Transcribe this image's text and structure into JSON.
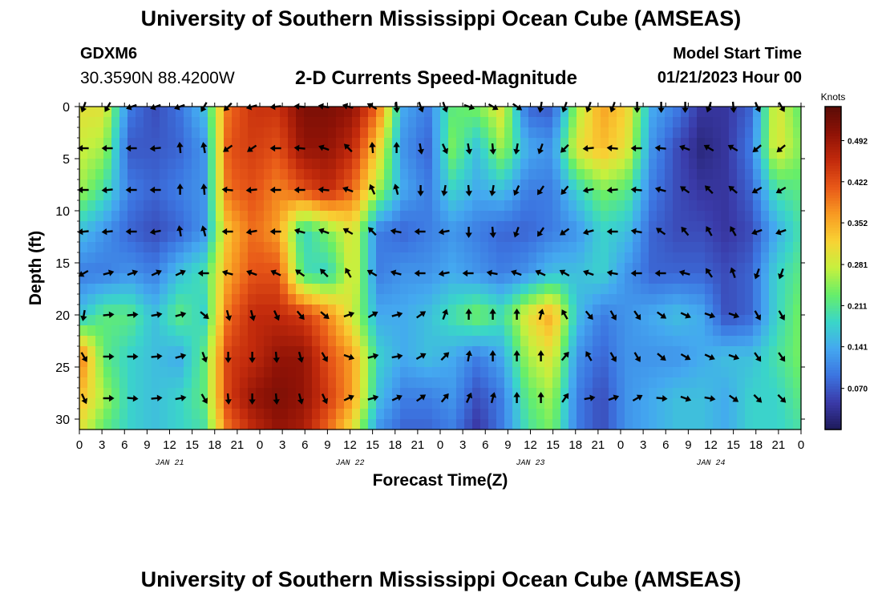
{
  "header": {
    "title": "University of Southern Mississippi Ocean Cube (AMSEAS)",
    "station": "GDXM6",
    "coords": "30.3590N  88.4200W",
    "plot_title": "2-D Currents Speed-Magnitude",
    "start_label": "Model Start Time",
    "start_value": "01/21/2023 Hour 00"
  },
  "footer": {
    "title": "University of Southern Mississippi Ocean Cube (AMSEAS)"
  },
  "chart_data": {
    "type": "heatmap",
    "title": "2-D Currents Speed-Magnitude",
    "xlabel": "Forecast Time(Z)",
    "ylabel": "Depth (ft)",
    "x_range_hours": [
      0,
      96
    ],
    "x_tick_labels": [
      "0",
      "3",
      "6",
      "9",
      "12",
      "15",
      "18",
      "21",
      "0",
      "3",
      "6",
      "9",
      "12",
      "15",
      "18",
      "21",
      "0",
      "3",
      "6",
      "9",
      "12",
      "15",
      "18",
      "21",
      "0",
      "3",
      "6",
      "9",
      "12",
      "15",
      "18",
      "21",
      "0"
    ],
    "date_labels": [
      "JAN 21",
      "JAN 22",
      "JAN 23",
      "JAN 24"
    ],
    "y_range_ft": [
      0,
      31
    ],
    "y_ticks": [
      0,
      5,
      10,
      15,
      20,
      25,
      30
    ],
    "colorbar": {
      "unit": "Knots",
      "range": [
        0,
        0.55
      ],
      "ticks": [
        "0.070",
        "0.141",
        "0.211",
        "0.281",
        "0.352",
        "0.422",
        "0.492"
      ],
      "colors": [
        "#1e1a5a",
        "#3a3aa8",
        "#3c74e0",
        "#44a8f0",
        "#3ad6c8",
        "#66ee6a",
        "#c6f03e",
        "#f8d234",
        "#f89a22",
        "#e85818",
        "#c22a0c",
        "#8e1206",
        "#5a0c06"
      ]
    },
    "speed_rows": [
      {
        "depth": 0,
        "values": [
          0.3,
          0.3,
          0.1,
          0.06,
          0.09,
          0.16,
          0.4,
          0.45,
          0.45,
          0.52,
          0.52,
          0.5,
          0.4,
          0.14,
          0.1,
          0.22,
          0.24,
          0.3,
          0.08,
          0.07,
          0.26,
          0.36,
          0.32,
          0.14,
          0.1,
          0.04,
          0.04,
          0.08,
          0.3,
          0.22
        ]
      },
      {
        "depth": 4,
        "values": [
          0.28,
          0.26,
          0.07,
          0.07,
          0.08,
          0.12,
          0.42,
          0.44,
          0.42,
          0.5,
          0.5,
          0.46,
          0.32,
          0.12,
          0.08,
          0.24,
          0.16,
          0.26,
          0.14,
          0.12,
          0.3,
          0.34,
          0.3,
          0.12,
          0.06,
          0.02,
          0.04,
          0.1,
          0.3,
          0.24
        ]
      },
      {
        "depth": 8,
        "values": [
          0.26,
          0.2,
          0.1,
          0.08,
          0.1,
          0.12,
          0.4,
          0.42,
          0.38,
          0.42,
          0.46,
          0.4,
          0.26,
          0.14,
          0.1,
          0.18,
          0.14,
          0.16,
          0.1,
          0.1,
          0.18,
          0.24,
          0.22,
          0.1,
          0.06,
          0.04,
          0.04,
          0.08,
          0.2,
          0.22
        ]
      },
      {
        "depth": 12,
        "values": [
          0.16,
          0.12,
          0.08,
          0.06,
          0.08,
          0.12,
          0.34,
          0.4,
          0.36,
          0.18,
          0.24,
          0.3,
          0.1,
          0.08,
          0.1,
          0.12,
          0.1,
          0.08,
          0.08,
          0.1,
          0.12,
          0.18,
          0.16,
          0.08,
          0.06,
          0.06,
          0.04,
          0.06,
          0.14,
          0.2
        ]
      },
      {
        "depth": 16,
        "values": [
          0.1,
          0.1,
          0.12,
          0.1,
          0.16,
          0.2,
          0.36,
          0.42,
          0.42,
          0.2,
          0.18,
          0.3,
          0.1,
          0.12,
          0.12,
          0.14,
          0.12,
          0.1,
          0.12,
          0.16,
          0.16,
          0.18,
          0.12,
          0.08,
          0.08,
          0.08,
          0.06,
          0.08,
          0.18,
          0.22
        ]
      },
      {
        "depth": 20,
        "values": [
          0.16,
          0.22,
          0.22,
          0.16,
          0.22,
          0.18,
          0.4,
          0.46,
          0.46,
          0.44,
          0.38,
          0.28,
          0.14,
          0.14,
          0.16,
          0.2,
          0.24,
          0.2,
          0.3,
          0.36,
          0.16,
          0.1,
          0.12,
          0.14,
          0.16,
          0.14,
          0.06,
          0.08,
          0.18,
          0.24
        ]
      },
      {
        "depth": 24,
        "values": [
          0.4,
          0.22,
          0.18,
          0.16,
          0.14,
          0.22,
          0.44,
          0.46,
          0.5,
          0.5,
          0.42,
          0.36,
          0.18,
          0.14,
          0.16,
          0.14,
          0.1,
          0.14,
          0.26,
          0.3,
          0.12,
          0.08,
          0.12,
          0.12,
          0.12,
          0.14,
          0.16,
          0.16,
          0.2,
          0.24
        ]
      },
      {
        "depth": 28,
        "values": [
          0.34,
          0.26,
          0.18,
          0.16,
          0.18,
          0.22,
          0.44,
          0.5,
          0.52,
          0.5,
          0.44,
          0.36,
          0.16,
          0.1,
          0.1,
          0.12,
          0.06,
          0.1,
          0.22,
          0.26,
          0.1,
          0.06,
          0.12,
          0.14,
          0.16,
          0.16,
          0.14,
          0.18,
          0.18,
          0.22
        ]
      },
      {
        "depth": 31,
        "values": [
          0.3,
          0.22,
          0.18,
          0.16,
          0.18,
          0.2,
          0.4,
          0.46,
          0.5,
          0.48,
          0.4,
          0.3,
          0.12,
          0.08,
          0.08,
          0.1,
          0.04,
          0.1,
          0.2,
          0.24,
          0.1,
          0.06,
          0.12,
          0.14,
          0.16,
          0.16,
          0.14,
          0.18,
          0.18,
          0.2
        ]
      }
    ],
    "vector_depths": [
      0,
      4,
      8,
      12,
      16,
      20,
      24,
      28
    ],
    "vector_count_per_row": 30,
    "vector_hours_step": 3.2,
    "vector_rows": [
      {
        "depth": 0,
        "dir_deg": [
          200,
          210,
          250,
          250,
          250,
          210,
          225,
          255,
          265,
          275,
          280,
          285,
          300,
          175,
          160,
          160,
          110,
          120,
          125,
          190,
          200,
          200,
          200,
          180,
          180,
          180,
          200,
          175,
          155,
          150
        ]
      },
      {
        "depth": 4,
        "dir_deg": [
          270,
          270,
          270,
          265,
          355,
          350,
          235,
          235,
          270,
          275,
          290,
          315,
          355,
          0,
          170,
          155,
          170,
          175,
          190,
          200,
          225,
          265,
          275,
          270,
          275,
          290,
          300,
          300,
          230,
          230
        ]
      },
      {
        "depth": 8,
        "dir_deg": [
          270,
          265,
          270,
          270,
          0,
          355,
          275,
          265,
          270,
          270,
          275,
          290,
          335,
          345,
          180,
          190,
          175,
          190,
          205,
          215,
          220,
          260,
          265,
          275,
          285,
          305,
          315,
          310,
          240,
          240
        ]
      },
      {
        "depth": 12,
        "dir_deg": [
          265,
          265,
          270,
          260,
          350,
          345,
          270,
          260,
          270,
          285,
          290,
          300,
          315,
          280,
          270,
          260,
          180,
          175,
          200,
          215,
          235,
          255,
          270,
          280,
          305,
          320,
          330,
          330,
          250,
          250
        ]
      },
      {
        "depth": 16,
        "dir_deg": [
          240,
          75,
          70,
          65,
          65,
          270,
          285,
          290,
          295,
          305,
          315,
          330,
          300,
          285,
          270,
          260,
          270,
          280,
          290,
          295,
          300,
          290,
          280,
          270,
          270,
          285,
          325,
          340,
          200,
          200
        ]
      },
      {
        "depth": 20,
        "dir_deg": [
          190,
          85,
          85,
          80,
          75,
          130,
          165,
          165,
          155,
          140,
          130,
          70,
          60,
          75,
          55,
          20,
          0,
          0,
          0,
          15,
          330,
          140,
          150,
          145,
          125,
          115,
          110,
          110,
          150,
          150
        ]
      },
      {
        "depth": 24,
        "dir_deg": [
          150,
          90,
          90,
          85,
          75,
          160,
          180,
          180,
          175,
          165,
          150,
          110,
          75,
          80,
          60,
          45,
          10,
          0,
          0,
          0,
          40,
          330,
          150,
          150,
          130,
          120,
          115,
          110,
          145,
          145
        ]
      },
      {
        "depth": 28,
        "dir_deg": [
          155,
          90,
          95,
          85,
          80,
          150,
          175,
          180,
          175,
          165,
          155,
          65,
          75,
          65,
          55,
          40,
          25,
          15,
          0,
          0,
          35,
          80,
          70,
          60,
          95,
          110,
          100,
          125,
          135,
          135
        ]
      }
    ]
  }
}
